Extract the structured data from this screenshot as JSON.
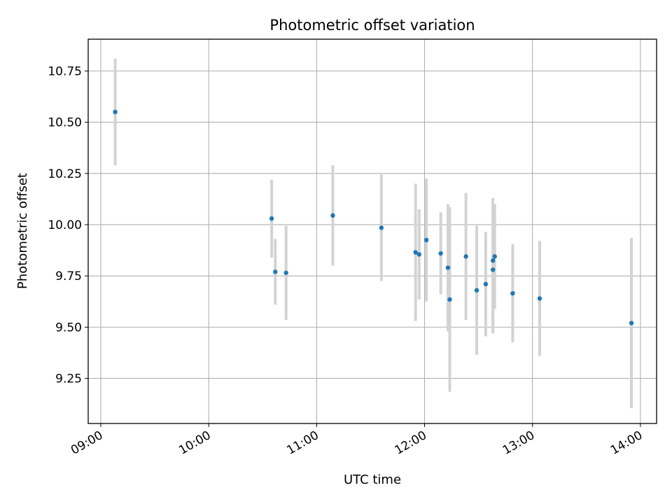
{
  "chart_data": {
    "type": "scatter",
    "title": "Photometric offset variation",
    "xlabel": "UTC time",
    "ylabel": "Photometric offset",
    "xlim": [
      "08:53",
      "14:09"
    ],
    "ylim": [
      9.03,
      10.905
    ],
    "grid": true,
    "xticks": [
      "09:00",
      "10:00",
      "11:00",
      "12:00",
      "13:00",
      "14:00"
    ],
    "yticks": [
      "9.25",
      "9.50",
      "9.75",
      "10.00",
      "10.25",
      "10.50",
      "10.75"
    ],
    "marker_color": "#1f77b4",
    "errorbar_color": "#d3d3d3",
    "series": [
      {
        "points": [
          {
            "t": "09:08",
            "y": 10.55,
            "err": 0.26
          },
          {
            "t": "10:35",
            "y": 10.03,
            "err": 0.19
          },
          {
            "t": "10:37",
            "y": 9.77,
            "err": 0.16
          },
          {
            "t": "10:43",
            "y": 9.765,
            "err": 0.23
          },
          {
            "t": "11:09",
            "y": 10.045,
            "err": 0.245
          },
          {
            "t": "11:36",
            "y": 9.985,
            "err": 0.26
          },
          {
            "t": "11:55",
            "y": 9.865,
            "err": 0.335
          },
          {
            "t": "11:57",
            "y": 9.855,
            "err": 0.22
          },
          {
            "t": "12:01",
            "y": 9.925,
            "err": 0.3
          },
          {
            "t": "12:09",
            "y": 9.86,
            "err": 0.2
          },
          {
            "t": "12:13",
            "y": 9.79,
            "err": 0.31
          },
          {
            "t": "12:14",
            "y": 9.635,
            "err": 0.45
          },
          {
            "t": "12:23",
            "y": 9.845,
            "err": 0.31
          },
          {
            "t": "12:29",
            "y": 9.68,
            "err": 0.315
          },
          {
            "t": "12:34",
            "y": 9.71,
            "err": 0.255
          },
          {
            "t": "12:38",
            "y": 9.78,
            "err": 0.31
          },
          {
            "t": "12:38",
            "y": 9.825,
            "err": 0.305
          },
          {
            "t": "12:39",
            "y": 9.845,
            "err": 0.255
          },
          {
            "t": "12:49",
            "y": 9.665,
            "err": 0.24
          },
          {
            "t": "13:04",
            "y": 9.64,
            "err": 0.28
          },
          {
            "t": "13:55",
            "y": 9.52,
            "err": 0.415
          }
        ]
      }
    ]
  }
}
